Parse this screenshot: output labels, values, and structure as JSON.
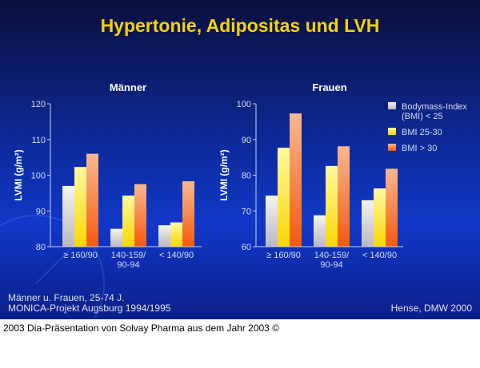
{
  "slide_title": "Hypertonie, Adipositas und LVH",
  "footnote_left": [
    "Männer u. Frauen, 25-74 J.",
    "MONICA-Projekt Augsburg 1994/1995"
  ],
  "footnote_right": "Hense, DMW 2000",
  "caption": "2003 Dia-Präsentation von Solvay Pharma aus dem Jahr 2003 ©",
  "colors": {
    "title": "#f5d20a",
    "bmi_lt25": "#d8d8d8",
    "bmi_25_30": "#f8e020",
    "bmi_gt30": "#f56a20"
  },
  "chart_data": [
    {
      "type": "bar",
      "title": "Männer",
      "ylabel": "LVMI (g/m²)",
      "ylim": [
        80,
        120
      ],
      "yticks": [
        80,
        90,
        100,
        110,
        120
      ],
      "categories": [
        [
          "≥ 160/90"
        ],
        [
          "140-159/",
          "90-94"
        ],
        [
          "< 140/90"
        ]
      ],
      "series": [
        {
          "name": "Bodymass-Index (BMI) < 25",
          "values": [
            97,
            85,
            86
          ]
        },
        {
          "name": "BMI 25-30",
          "values": [
            102.3,
            94.3,
            86.8
          ]
        },
        {
          "name": "BMI > 30",
          "values": [
            106,
            97.5,
            98.3
          ]
        }
      ]
    },
    {
      "type": "bar",
      "title": "Frauen",
      "ylabel": "LVMI (g/m²)",
      "ylim": [
        60,
        100
      ],
      "yticks": [
        60,
        70,
        80,
        90,
        100
      ],
      "categories": [
        [
          "≥ 160/90"
        ],
        [
          "140-159/",
          "90-94"
        ],
        [
          "< 140/90"
        ]
      ],
      "series": [
        {
          "name": "Bodymass-Index (BMI) < 25",
          "values": [
            74.3,
            68.8,
            73
          ]
        },
        {
          "name": "BMI 25-30",
          "values": [
            87.7,
            82.6,
            76.3
          ]
        },
        {
          "name": "BMI > 30",
          "values": [
            97.3,
            88.1,
            81.8
          ]
        }
      ]
    }
  ],
  "legend": {
    "placement": "right",
    "items": [
      [
        "Bodymass-Index",
        "(BMI) < 25"
      ],
      [
        "BMI 25-30"
      ],
      [
        "BMI > 30"
      ]
    ]
  }
}
